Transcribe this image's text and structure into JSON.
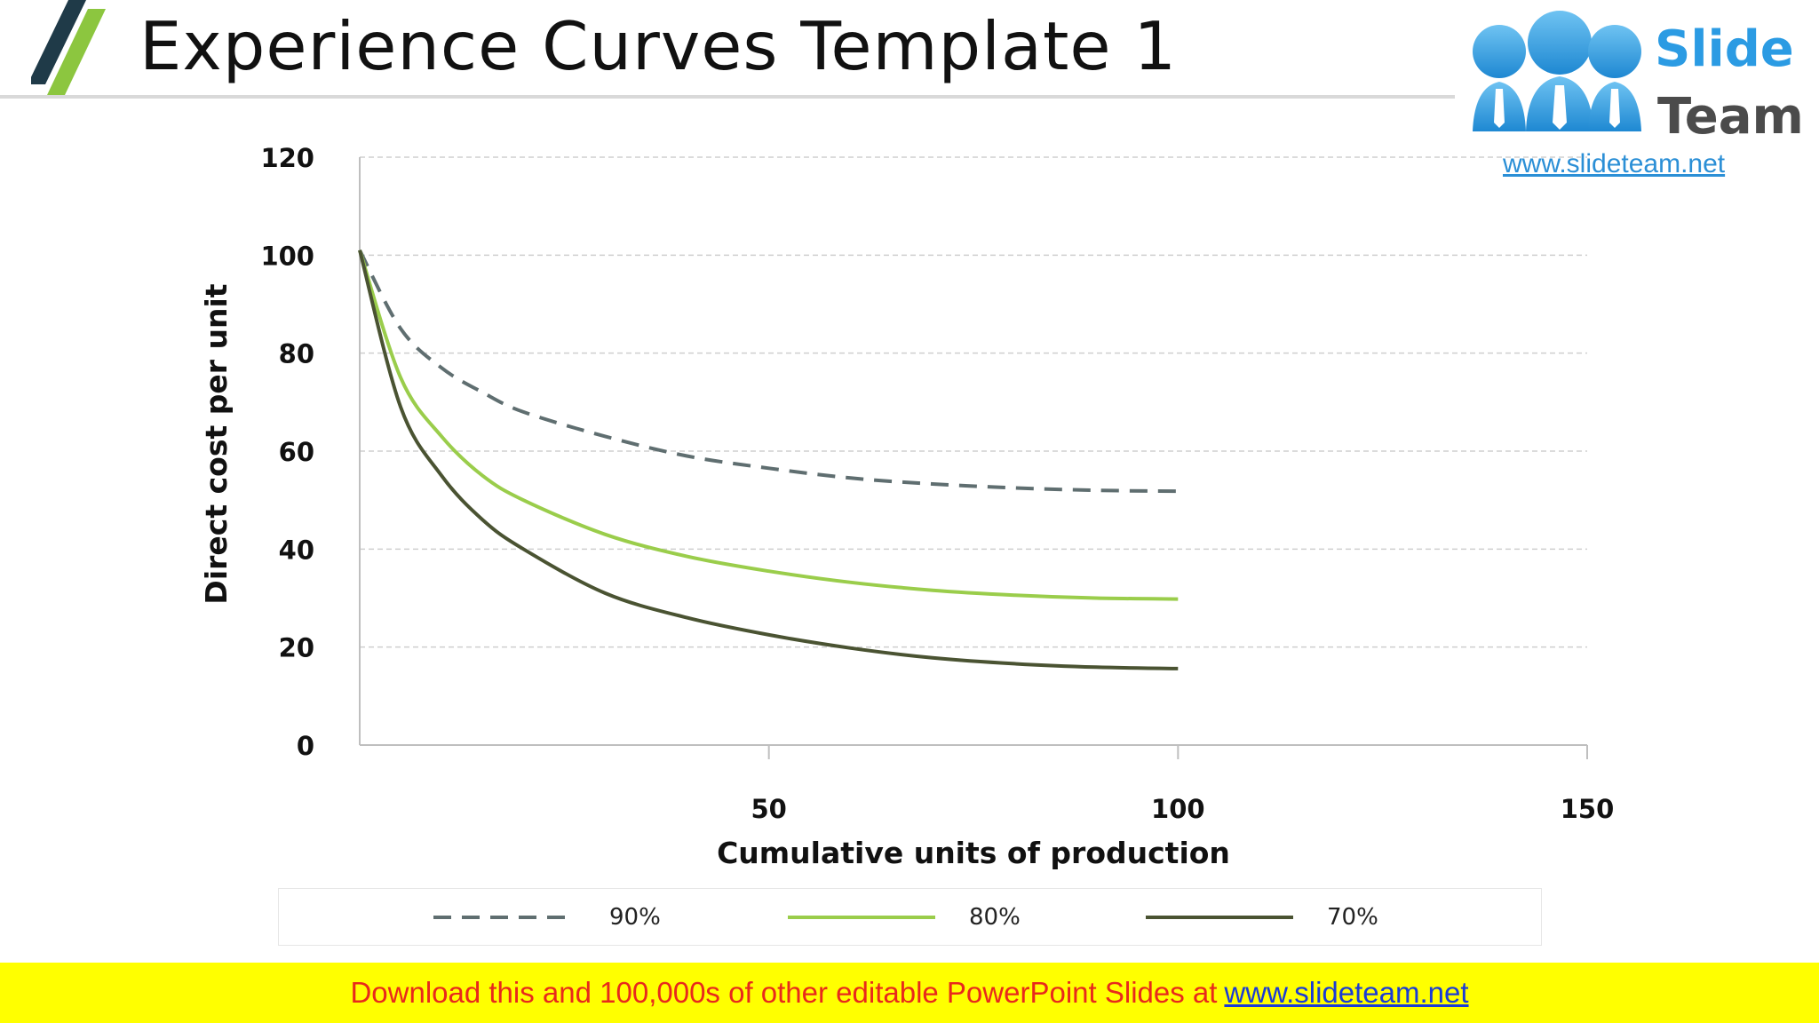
{
  "slide": {
    "title": "Experience Curves Template 1",
    "footer_text": "Download this and 100,000s of other editable PowerPoint Slides at",
    "footer_link": "www.slideteam.net"
  },
  "logo": {
    "word1": "Slide",
    "word2": "Team",
    "url": "www.slideteam.net"
  },
  "colors": {
    "accent_dark": "#1f3a48",
    "accent_green": "#8cc63f",
    "series_90": "#5f6e70",
    "series_80": "#9acd4b",
    "series_70": "#4a5332",
    "grid": "#cfcfcf",
    "footer_bg": "#ffff00",
    "footer_text": "#e8291c"
  },
  "chart_data": {
    "type": "line",
    "title": "",
    "xlabel": "Cumulative units of production",
    "ylabel": "Direct cost per unit",
    "xlim": [
      0,
      150
    ],
    "ylim": [
      0,
      120
    ],
    "xticks": [
      50,
      100,
      150
    ],
    "yticks": [
      0,
      20,
      40,
      60,
      80,
      100,
      120
    ],
    "grid": true,
    "legend_position": "bottom",
    "x": [
      0,
      5,
      10,
      15,
      20,
      30,
      40,
      50,
      60,
      70,
      80,
      90,
      100
    ],
    "series": [
      {
        "name": "90%",
        "style": "dashed",
        "values": [
          101,
          85,
          77,
          72,
          68,
          63,
          59,
          56.5,
          54.5,
          53.3,
          52.5,
          52,
          51.8
        ]
      },
      {
        "name": "80%",
        "style": "solid",
        "values": [
          101,
          75,
          63,
          55,
          50,
          43,
          38.5,
          35.5,
          33.2,
          31.6,
          30.6,
          30,
          29.8
        ]
      },
      {
        "name": "70%",
        "style": "solid",
        "values": [
          101,
          69,
          55,
          46,
          40,
          31,
          26,
          22.5,
          19.8,
          17.8,
          16.6,
          15.9,
          15.6
        ]
      }
    ]
  }
}
